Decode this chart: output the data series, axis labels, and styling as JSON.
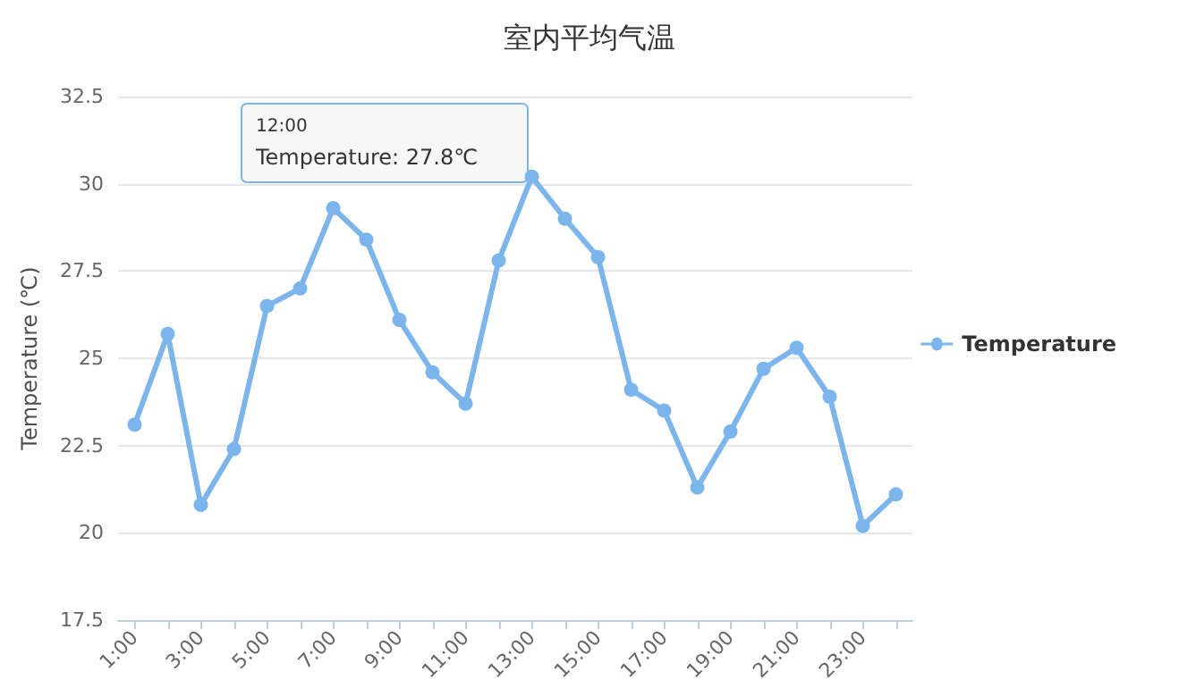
{
  "chart_data": {
    "type": "line",
    "title": "室内平均气温",
    "ylabel": "Temperature (℃)",
    "categories": [
      "1:00",
      null,
      "3:00",
      null,
      "5:00",
      null,
      "7:00",
      null,
      "9:00",
      null,
      "11:00",
      null,
      "13:00",
      null,
      "15:00",
      null,
      "17:00",
      null,
      "19:00",
      null,
      "21:00",
      null,
      "23:00",
      null
    ],
    "series": [
      {
        "name": "Temperature",
        "color": "#7cb5ec",
        "values": [
          23.1,
          25.7,
          20.8,
          22.4,
          26.5,
          27.0,
          29.3,
          28.4,
          26.1,
          24.6,
          23.7,
          27.8,
          30.2,
          29.0,
          27.9,
          24.1,
          23.5,
          21.3,
          22.9,
          24.7,
          25.3,
          23.9,
          20.2,
          21.1
        ]
      }
    ],
    "ylim": [
      17.5,
      32.5
    ],
    "yticks": [
      17.5,
      20,
      22.5,
      25,
      27.5,
      30,
      32.5
    ],
    "grid": "y",
    "legend": "right",
    "marker": "circle",
    "line_style": "solid",
    "annotations": [
      "12:00",
      "Temperature: 27.8℃"
    ]
  }
}
